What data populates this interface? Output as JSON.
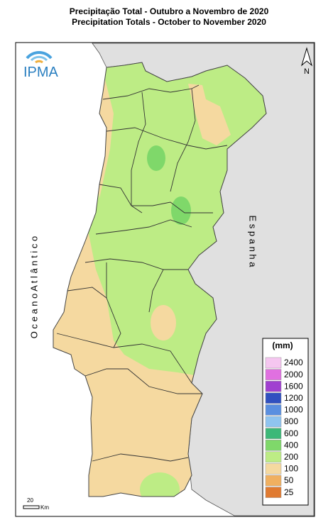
{
  "header": {
    "title_pt": "Precipitação Total  - Outubro a Novembro de 2020",
    "title_en": "Precipitation Totals - October to November 2020"
  },
  "logo": {
    "text": "IPMA"
  },
  "north_arrow": {
    "label": "N"
  },
  "labels": {
    "ocean": "O c e a n o   A t l â n t i c o",
    "spain": "E s p a n h a"
  },
  "scale_bar": {
    "value": "20",
    "unit": "Km"
  },
  "legend": {
    "title": "(mm)",
    "items": [
      {
        "label": "2400",
        "color": "#f5c6f0"
      },
      {
        "label": "2000",
        "color": "#e070e0"
      },
      {
        "label": "1600",
        "color": "#a040d0"
      },
      {
        "label": "1200",
        "color": "#3050c0"
      },
      {
        "label": "1000",
        "color": "#5a8fe0"
      },
      {
        "label": "800",
        "color": "#8fc4f0"
      },
      {
        "label": "600",
        "color": "#3cb878"
      },
      {
        "label": "400",
        "color": "#7fd86a"
      },
      {
        "label": "200",
        "color": "#bdec85"
      },
      {
        "label": "100",
        "color": "#f5d9a0"
      },
      {
        "label": "50",
        "color": "#f0b060"
      },
      {
        "label": "25",
        "color": "#e07a30"
      }
    ]
  }
}
